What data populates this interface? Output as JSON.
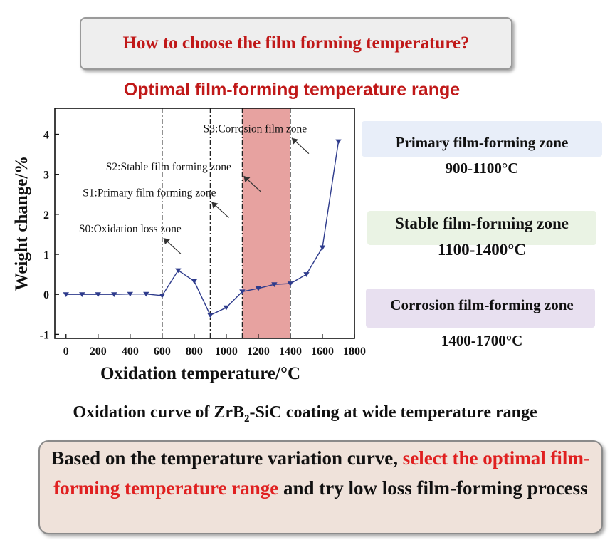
{
  "header": {
    "question": "How to choose the film forming temperature?"
  },
  "optimal_title": "Optimal film-forming temperature range",
  "chart_data": {
    "type": "line",
    "xlabel": "Oxidation temperature/°C",
    "ylabel": "Weight change/%",
    "xlim": [
      -70,
      1800
    ],
    "ylim": [
      -1.1,
      4.65
    ],
    "xticks": [
      0,
      200,
      400,
      600,
      800,
      1000,
      1200,
      1400,
      1600,
      1800
    ],
    "yticks": [
      -1,
      0,
      1,
      2,
      3,
      4
    ],
    "grid": false,
    "series": [
      {
        "marker": "down-triangle",
        "color": "#2e3b8c",
        "x": [
          0,
          100,
          200,
          300,
          400,
          500,
          600,
          700,
          800,
          900,
          1000,
          1100,
          1200,
          1300,
          1400,
          1500,
          1600,
          1700
        ],
        "y": [
          0.0,
          0.0,
          0.0,
          0.0,
          0.01,
          0.01,
          -0.03,
          0.6,
          0.33,
          -0.52,
          -0.33,
          0.07,
          0.15,
          0.25,
          0.27,
          0.5,
          1.17,
          3.82
        ]
      }
    ],
    "boundaries": [
      600,
      900,
      1100,
      1400
    ],
    "highlight_range": [
      1100,
      1400
    ],
    "highlight_color": "#e7a2a0",
    "annotations": [
      {
        "text": "S0:Oxidation loss zone",
        "x": 400,
        "y": 1.55
      },
      {
        "text": "S1:Primary film forming zone",
        "x": 520,
        "y": 2.45
      },
      {
        "text": "S2:Stable film forming zone",
        "x": 640,
        "y": 3.1
      },
      {
        "text": "S3:Corrosion film zone",
        "x": 1180,
        "y": 4.05
      }
    ]
  },
  "zones": [
    {
      "name": "Primary film-forming zone",
      "range": "900-1100°C",
      "color": "#e8eef9"
    },
    {
      "name": "Stable film-forming zone",
      "range": "1100-1400°C",
      "color": "#eaf3e4"
    },
    {
      "name": "Corrosion film-forming zone",
      "range": "1400-1700°C",
      "color": "#e8e0f0"
    }
  ],
  "caption": {
    "before": "Oxidation curve of ZrB",
    "sub": "2",
    "after": "-SiC coating at wide temperature range"
  },
  "summary": {
    "part1": "Based on the temperature variation curve, ",
    "highlight": "select the optimal film-forming temperature range",
    "part2": " and try low loss film-forming process"
  }
}
